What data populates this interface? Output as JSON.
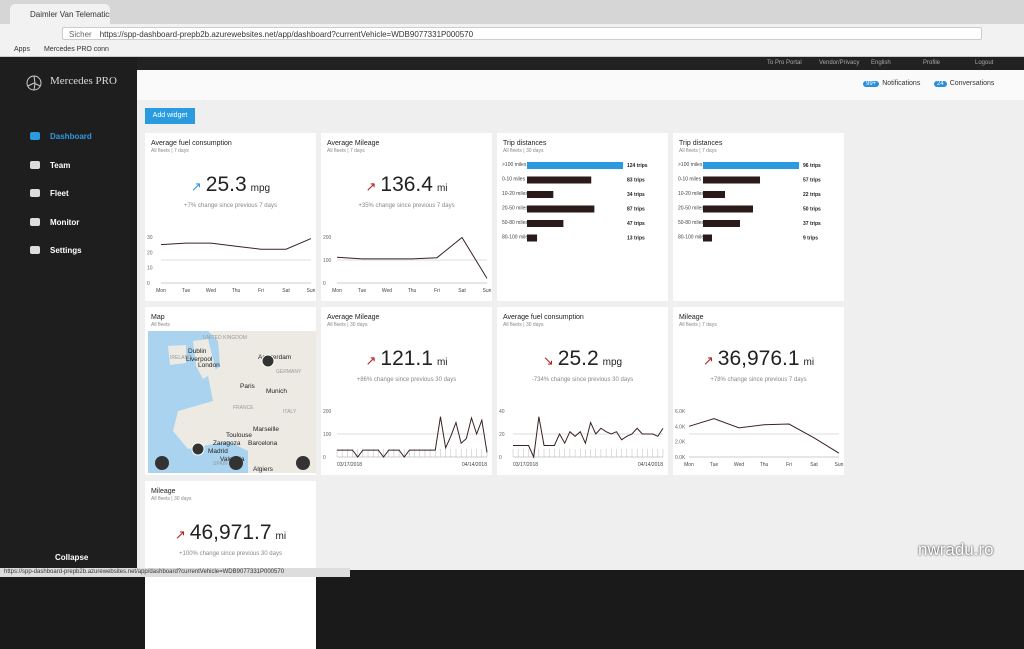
{
  "browser": {
    "tab_title": "Daimler Van Telematics",
    "secure_label": "Sicher",
    "url": "https://spp-dashboard-prepb2b.azurewebsites.net/app/dashboard?currentVehicle=WDB9077331P000570",
    "bookmarks": [
      "Apps",
      "Mercedes PRO conn"
    ]
  },
  "app": {
    "brand": "Mercedes PRO",
    "nav": [
      "Dashboard",
      "Team",
      "Fleet",
      "Monitor",
      "Settings"
    ],
    "collapse": "Collapse",
    "top_links": [
      "To Pro Portal",
      "Vendor/Privacy",
      "English",
      "Profile",
      "Logout"
    ],
    "notifications": {
      "badge": "99+",
      "label": "Notifications"
    },
    "conversations": {
      "badge": "24",
      "label": "Conversations"
    },
    "add_widget": "Add widget"
  },
  "widgets": [
    {
      "type": "metric",
      "title": "Average fuel consumption",
      "subtitle": "All fleets | 7 days",
      "value": "25.3",
      "unit": "mpg",
      "trend": "up",
      "color": "#2b9be0",
      "change": "+7% change since previous 7 days",
      "chart": {
        "x_labels": [
          "Mon",
          "Tue",
          "Wed",
          "Thu",
          "Fri",
          "Sat",
          "Sun"
        ],
        "y_labels": [
          "30",
          "20",
          "10",
          "0"
        ],
        "ylim": [
          0,
          30
        ],
        "values": [
          25,
          26,
          26,
          24,
          22,
          22,
          29
        ]
      }
    },
    {
      "type": "metric",
      "title": "Average Mileage",
      "subtitle": "All fleets | 7 days",
      "value": "136.4",
      "unit": "mi",
      "trend": "up",
      "color": "#b22222",
      "change": "+35% change since previous 7 days",
      "chart": {
        "x_labels": [
          "Mon",
          "Tue",
          "Wed",
          "Thu",
          "Fri",
          "Sat",
          "Sun"
        ],
        "y_labels": [
          "200",
          "100",
          "0"
        ],
        "ylim": [
          0,
          200
        ],
        "values": [
          112,
          105,
          105,
          105,
          110,
          198,
          20
        ]
      }
    },
    {
      "type": "trips",
      "title": "Trip distances",
      "subtitle": "All fleets | 30 days",
      "rows": [
        {
          "label": ">100 miles",
          "trips": 124,
          "trips_label": "124 trips"
        },
        {
          "label": "0-10 miles",
          "trips": 83,
          "trips_label": "83 trips"
        },
        {
          "label": "10-20 miles",
          "trips": 34,
          "trips_label": "34 trips"
        },
        {
          "label": "20-50 miles",
          "trips": 87,
          "trips_label": "87 trips"
        },
        {
          "label": "50-80 miles",
          "trips": 47,
          "trips_label": "47 trips"
        },
        {
          "label": "80-100 miles",
          "trips": 13,
          "trips_label": "13 trips"
        }
      ]
    },
    {
      "type": "trips",
      "title": "Trip distances",
      "subtitle": "All fleets | 7 days",
      "rows": [
        {
          "label": ">100 miles",
          "trips": 96,
          "trips_label": "96 trips"
        },
        {
          "label": "0-10 miles",
          "trips": 57,
          "trips_label": "57 trips"
        },
        {
          "label": "10-20 miles",
          "trips": 22,
          "trips_label": "22 trips"
        },
        {
          "label": "20-50 miles",
          "trips": 50,
          "trips_label": "50 trips"
        },
        {
          "label": "50-80 miles",
          "trips": 37,
          "trips_label": "37 trips"
        },
        {
          "label": "80-100 miles",
          "trips": 9,
          "trips_label": "9 trips"
        }
      ]
    },
    {
      "type": "map",
      "title": "Map",
      "subtitle": "All fleets",
      "places": [
        "IRELAND",
        "Dublin",
        "Liverpool",
        "UNITED KINGDOM",
        "London",
        "Amsterdam",
        "GERMANY",
        "Paris",
        "Munich",
        "FRANCE",
        "ITALY",
        "Toulouse",
        "Marseille",
        "Zaragoza",
        "Barcelona",
        "Madrid",
        "SPAIN",
        "Valencia",
        "Algiers"
      ]
    },
    {
      "type": "metric",
      "title": "Average Mileage",
      "subtitle": "All fleets | 30 days",
      "value": "121.1",
      "unit": "mi",
      "trend": "up",
      "color": "#b22222",
      "change": "+86% change since previous 30 days",
      "chart": {
        "x_labels": [
          "03/17/2018",
          "04/14/2018"
        ],
        "y_labels": [
          "200",
          "100",
          "0"
        ],
        "ylim": [
          0,
          200
        ],
        "values": [
          30,
          30,
          30,
          30,
          0,
          30,
          30,
          30,
          30,
          0,
          30,
          30,
          30,
          0,
          30,
          30,
          30,
          30,
          30,
          30,
          175,
          40,
          90,
          150,
          60,
          80,
          170,
          100,
          160,
          20
        ]
      }
    },
    {
      "type": "metric",
      "title": "Average fuel consumption",
      "subtitle": "All fleets | 30 days",
      "value": "25.2",
      "unit": "mpg",
      "trend": "down",
      "color": "#b22222",
      "change": "-734% change since previous 30 days",
      "chart": {
        "x_labels": [
          "03/17/2018",
          "04/14/2018"
        ],
        "y_labels": [
          "40",
          "20",
          "0"
        ],
        "ylim": [
          0,
          40
        ],
        "values": [
          10,
          10,
          10,
          10,
          0,
          35,
          10,
          10,
          10,
          20,
          12,
          22,
          18,
          22,
          12,
          30,
          20,
          25,
          22,
          20,
          22,
          15,
          18,
          20,
          25,
          20,
          20,
          20,
          18,
          25
        ]
      }
    },
    {
      "type": "metric",
      "title": "Mileage",
      "subtitle": "All fleets | 7 days",
      "value": "36,976.1",
      "unit": "mi",
      "trend": "up",
      "color": "#b22222",
      "change": "+78% change since previous 7 days",
      "chart": {
        "x_labels": [
          "Mon",
          "Tue",
          "Wed",
          "Thu",
          "Fri",
          "Sat",
          "Sun"
        ],
        "y_labels": [
          "6.0K",
          "4.0K",
          "2.0K",
          "0.0K"
        ],
        "ylim": [
          0,
          6000
        ],
        "values": [
          4000,
          5000,
          3800,
          4200,
          4300,
          2500,
          500
        ]
      }
    },
    {
      "type": "metric",
      "title": "Mileage",
      "subtitle": "All fleets | 30 days",
      "value": "46,971.7",
      "unit": "mi",
      "trend": "up",
      "color": "#b22222",
      "change": "+100% change since previous 30 days"
    }
  ],
  "status_url": "https://spp-dashboard-prepb2b.azurewebsites.net/app/dashboard?currentVehicle=WDB9077331P000570",
  "watermark": "nwradu.ro"
}
